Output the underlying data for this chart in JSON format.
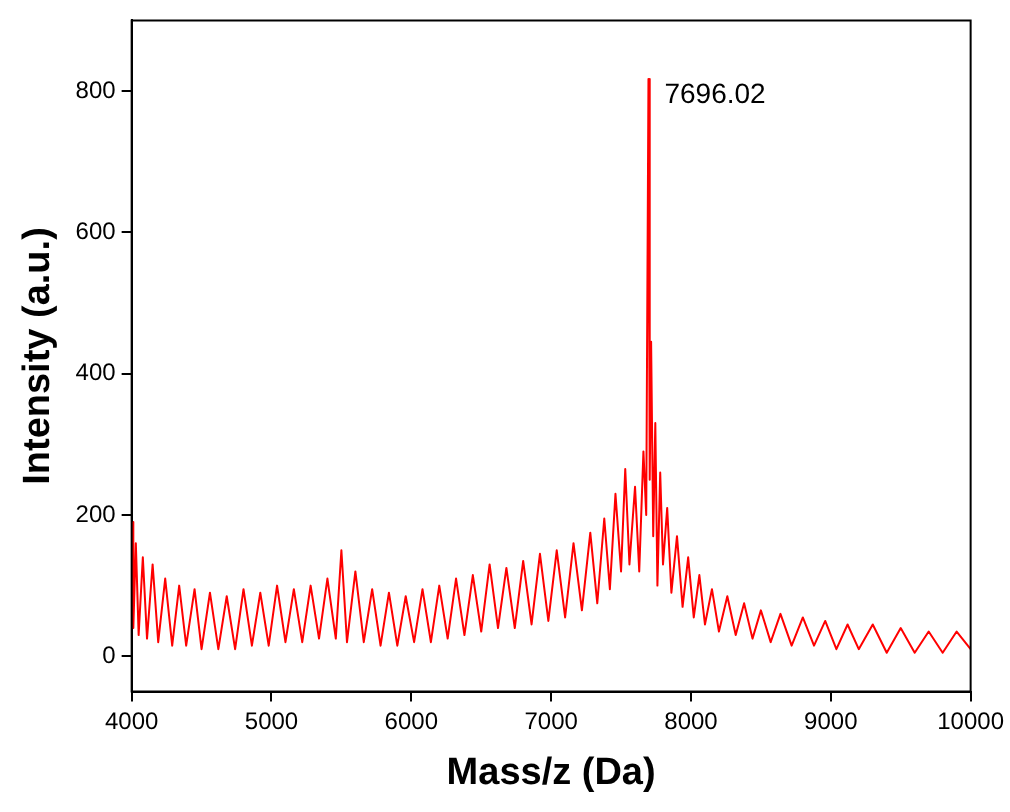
{
  "chart_data": {
    "type": "line",
    "xlabel": "Mass/z (Da)",
    "ylabel": "Intensity (a.u.)",
    "xlim": [
      4000,
      10000
    ],
    "xticks": [
      4000,
      5000,
      6000,
      7000,
      8000,
      9000,
      10000
    ],
    "ylim": [
      -50,
      900
    ],
    "yticks": [
      0,
      200,
      400,
      600,
      800
    ],
    "grid": false,
    "legend": false,
    "marker": "none",
    "line_style": "solid",
    "annotations": [
      {
        "text": "7696.02",
        "x": 7696,
        "y": 817
      }
    ],
    "series": [
      {
        "color": "#ff0000",
        "x": [
          4006,
          4012,
          4030,
          4050,
          4080,
          4110,
          4150,
          4190,
          4240,
          4290,
          4340,
          4390,
          4450,
          4500,
          4560,
          4620,
          4680,
          4740,
          4800,
          4860,
          4920,
          4980,
          5040,
          5100,
          5160,
          5220,
          5280,
          5340,
          5400,
          5460,
          5500,
          5540,
          5600,
          5660,
          5720,
          5780,
          5840,
          5900,
          5960,
          6020,
          6080,
          6140,
          6200,
          6260,
          6320,
          6380,
          6440,
          6500,
          6560,
          6620,
          6680,
          6740,
          6800,
          6860,
          6920,
          6980,
          7040,
          7100,
          7160,
          7220,
          7280,
          7330,
          7380,
          7420,
          7460,
          7500,
          7530,
          7560,
          7600,
          7630,
          7660,
          7680,
          7696,
          7705,
          7715,
          7730,
          7745,
          7760,
          7780,
          7800,
          7830,
          7860,
          7900,
          7940,
          7980,
          8020,
          8060,
          8100,
          8150,
          8200,
          8260,
          8320,
          8380,
          8440,
          8500,
          8570,
          8640,
          8720,
          8800,
          8880,
          8960,
          9040,
          9120,
          9200,
          9300,
          9400,
          9500,
          9600,
          9700,
          9800,
          9900,
          10000
        ],
        "values": [
          190,
          40,
          160,
          30,
          140,
          25,
          130,
          20,
          110,
          15,
          100,
          15,
          95,
          10,
          90,
          10,
          85,
          10,
          95,
          15,
          90,
          15,
          100,
          20,
          95,
          20,
          100,
          25,
          110,
          25,
          150,
          20,
          120,
          20,
          95,
          15,
          90,
          15,
          85,
          20,
          95,
          20,
          100,
          25,
          110,
          30,
          115,
          35,
          130,
          40,
          125,
          40,
          135,
          45,
          145,
          50,
          150,
          55,
          160,
          65,
          175,
          75,
          195,
          95,
          230,
          120,
          265,
          130,
          240,
          120,
          290,
          200,
          817,
          250,
          445,
          170,
          330,
          100,
          260,
          130,
          210,
          90,
          170,
          70,
          140,
          55,
          115,
          45,
          95,
          35,
          85,
          30,
          75,
          25,
          65,
          20,
          60,
          15,
          55,
          15,
          50,
          10,
          45,
          10,
          45,
          5,
          40,
          5,
          35,
          5,
          35,
          10
        ]
      }
    ]
  }
}
